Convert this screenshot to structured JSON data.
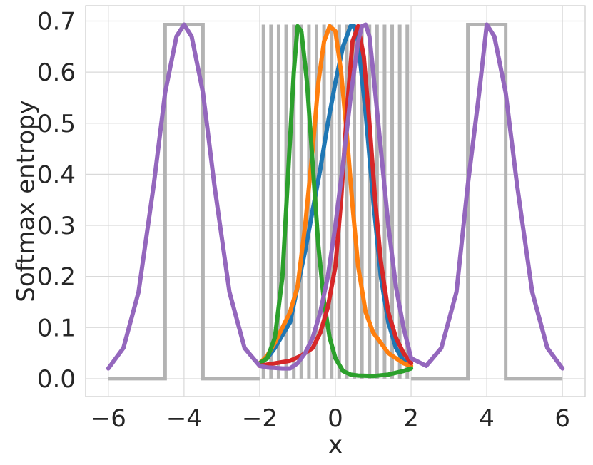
{
  "chart_data": {
    "type": "line",
    "xlabel": "x",
    "ylabel": "Softmax entropy",
    "xlim": [
      -6.6,
      6.6
    ],
    "ylim": [
      -0.035,
      0.73
    ],
    "grid": true,
    "legend": "none",
    "xticks": [
      -6,
      -4,
      -2,
      0,
      2,
      4,
      6
    ],
    "xtick_labels": [
      "−6",
      "−4",
      "−2",
      "0",
      "2",
      "4",
      "6"
    ],
    "yticks": [
      0.0,
      0.1,
      0.2,
      0.3,
      0.4,
      0.5,
      0.6,
      0.7
    ],
    "ytick_labels": [
      "0.0",
      "0.1",
      "0.2",
      "0.3",
      "0.4",
      "0.5",
      "0.6",
      "0.7"
    ],
    "step_series": {
      "color": "#b3b3b3",
      "low": 0.0,
      "high": 0.693,
      "segments": [
        {
          "x": [
            -6,
            -4.5
          ],
          "y": 0.0
        },
        {
          "x": [
            -4.5,
            -3.5
          ],
          "y": 0.693
        },
        {
          "x": [
            -3.5,
            -2.0
          ],
          "y": 0.0
        },
        {
          "x": [
            2.0,
            3.5
          ],
          "y": 0.0
        },
        {
          "x": [
            3.5,
            4.5
          ],
          "y": 0.693
        },
        {
          "x": [
            4.5,
            6
          ],
          "y": 0.0
        }
      ],
      "spikes_x": [
        -1.9,
        -1.7,
        -1.5,
        -1.3,
        -1.1,
        -0.9,
        -0.7,
        -0.5,
        -0.3,
        -0.1,
        0.1,
        0.3,
        0.5,
        0.7,
        0.9,
        1.1,
        1.3,
        1.5,
        1.7,
        1.9
      ]
    },
    "series": [
      {
        "color": "#1f77b4",
        "x": [
          -2.0,
          -1.8,
          -1.6,
          -1.4,
          -1.2,
          -1.0,
          -0.8,
          -0.6,
          -0.4,
          -0.2,
          0.0,
          0.2,
          0.4,
          0.5,
          0.6,
          0.8,
          1.0,
          1.2,
          1.4,
          1.6,
          1.8,
          2.0
        ],
        "y": [
          0.03,
          0.04,
          0.06,
          0.085,
          0.11,
          0.18,
          0.25,
          0.33,
          0.41,
          0.5,
          0.58,
          0.65,
          0.69,
          0.69,
          0.66,
          0.52,
          0.35,
          0.2,
          0.11,
          0.06,
          0.035,
          0.03
        ]
      },
      {
        "color": "#ff7f0e",
        "x": [
          -2.0,
          -1.8,
          -1.6,
          -1.4,
          -1.2,
          -1.0,
          -0.8,
          -0.6,
          -0.45,
          -0.3,
          -0.15,
          0.0,
          0.15,
          0.3,
          0.45,
          0.6,
          0.8,
          1.0,
          1.2,
          1.4,
          1.6,
          1.8,
          2.0
        ],
        "y": [
          0.03,
          0.045,
          0.07,
          0.1,
          0.13,
          0.18,
          0.3,
          0.45,
          0.58,
          0.66,
          0.69,
          0.68,
          0.6,
          0.48,
          0.34,
          0.22,
          0.13,
          0.09,
          0.07,
          0.05,
          0.04,
          0.03,
          0.025
        ]
      },
      {
        "color": "#2ca02c",
        "x": [
          -2.0,
          -1.8,
          -1.6,
          -1.4,
          -1.25,
          -1.1,
          -1.0,
          -0.9,
          -0.75,
          -0.6,
          -0.45,
          -0.3,
          -0.15,
          0.0,
          0.2,
          0.4,
          0.6,
          1.0,
          1.4,
          1.8,
          2.0
        ],
        "y": [
          0.03,
          0.04,
          0.08,
          0.2,
          0.4,
          0.6,
          0.69,
          0.68,
          0.58,
          0.42,
          0.26,
          0.15,
          0.08,
          0.04,
          0.015,
          0.008,
          0.006,
          0.005,
          0.008,
          0.015,
          0.02
        ]
      },
      {
        "color": "#d62728",
        "x": [
          -2.0,
          -1.6,
          -1.2,
          -0.9,
          -0.6,
          -0.4,
          -0.2,
          0.0,
          0.15,
          0.3,
          0.45,
          0.6,
          0.75,
          0.9,
          1.05,
          1.2,
          1.4,
          1.6,
          1.8,
          2.0
        ],
        "y": [
          0.025,
          0.03,
          0.035,
          0.045,
          0.06,
          0.09,
          0.14,
          0.22,
          0.35,
          0.52,
          0.66,
          0.69,
          0.63,
          0.5,
          0.35,
          0.23,
          0.13,
          0.08,
          0.05,
          0.03
        ]
      },
      {
        "color": "#9467bd",
        "x": [
          -6.0,
          -5.6,
          -5.2,
          -4.8,
          -4.5,
          -4.2,
          -4.0,
          -3.8,
          -3.5,
          -3.2,
          -2.8,
          -2.4,
          -2.0,
          -1.8,
          -1.6,
          -1.4,
          -1.2,
          -1.0,
          -0.8,
          -0.6,
          -0.4,
          -0.2,
          0.0,
          0.2,
          0.4,
          0.6,
          0.7,
          0.8,
          0.9,
          1.0,
          1.2,
          1.4,
          1.6,
          1.8,
          2.0,
          2.4,
          2.8,
          3.2,
          3.5,
          3.8,
          4.0,
          4.2,
          4.5,
          4.8,
          5.2,
          5.6,
          6.0
        ],
        "y": [
          0.02,
          0.06,
          0.17,
          0.38,
          0.56,
          0.67,
          0.693,
          0.67,
          0.56,
          0.38,
          0.17,
          0.06,
          0.025,
          0.022,
          0.021,
          0.02,
          0.02,
          0.03,
          0.05,
          0.08,
          0.13,
          0.2,
          0.3,
          0.42,
          0.55,
          0.66,
          0.69,
          0.693,
          0.67,
          0.6,
          0.45,
          0.3,
          0.18,
          0.1,
          0.04,
          0.025,
          0.06,
          0.17,
          0.38,
          0.56,
          0.693,
          0.67,
          0.56,
          0.38,
          0.17,
          0.06,
          0.02
        ]
      }
    ]
  }
}
